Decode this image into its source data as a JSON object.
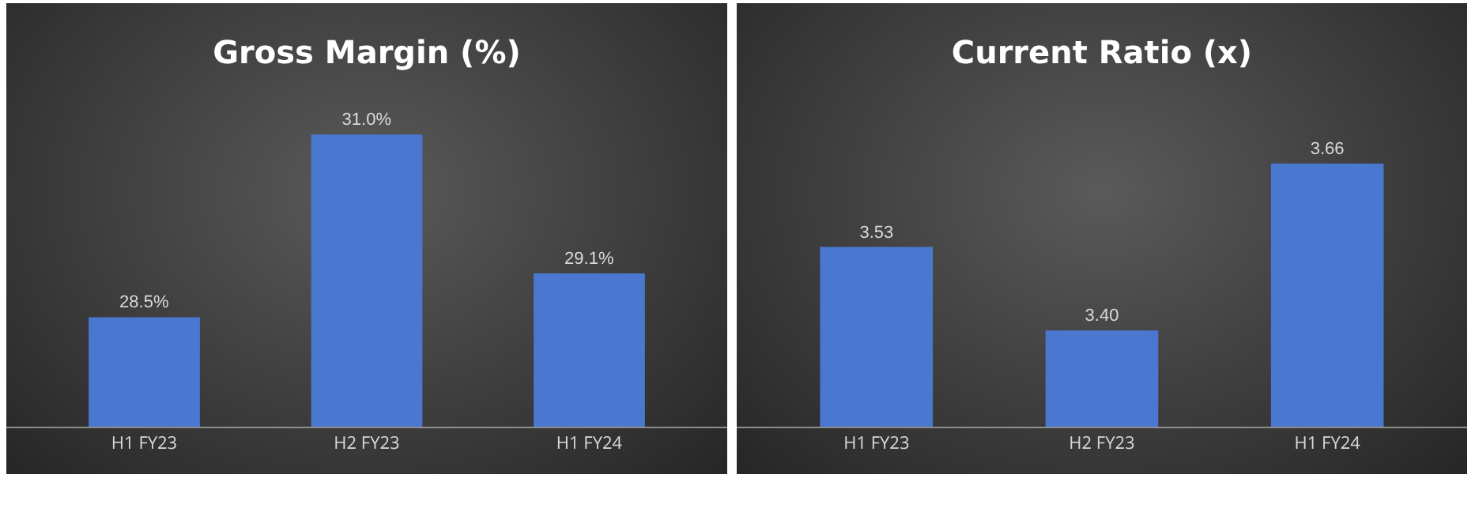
{
  "chart_data": [
    {
      "type": "bar",
      "title": "Gross Margin (%)",
      "categories": [
        "H1 FY23",
        "H2 FY23",
        "H1 FY24"
      ],
      "values": [
        28.5,
        31.0,
        29.1
      ],
      "value_labels": [
        "28.5%",
        "31.0%",
        "29.1%"
      ],
      "color": "#4a78d0",
      "ylim": [
        27,
        32.8
      ],
      "tick_labels": "x",
      "grid": false
    },
    {
      "type": "bar",
      "title": "Current Ratio (x)",
      "categories": [
        "H1 FY23",
        "H2 FY23",
        "H1 FY24"
      ],
      "values": [
        3.53,
        3.4,
        3.66
      ],
      "value_labels": [
        "3.53",
        "3.40",
        "3.66"
      ],
      "color": "#4a78d0",
      "ylim": [
        3.25,
        3.91
      ],
      "tick_labels": "x",
      "grid": false
    }
  ]
}
